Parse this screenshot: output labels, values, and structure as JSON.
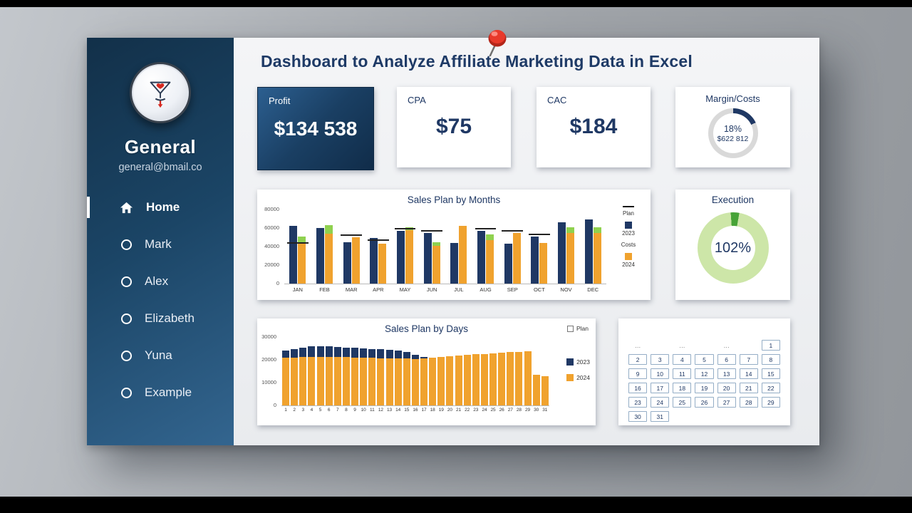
{
  "page": {
    "title": "Dashboard to Analyze Affiliate Marketing Data in Excel"
  },
  "sidebar": {
    "name": "General",
    "email": "general@bmail.co",
    "items": [
      {
        "label": "Home",
        "active": true
      },
      {
        "label": "Mark",
        "active": false
      },
      {
        "label": "Alex",
        "active": false
      },
      {
        "label": "Elizabeth",
        "active": false
      },
      {
        "label": "Yuna",
        "active": false
      },
      {
        "label": "Example",
        "active": false
      }
    ]
  },
  "icons": {
    "logo": "martini-glass-with-heart-and-down-arrow",
    "home": "house",
    "bullet": "circle-outline",
    "pin": "red-pushpin"
  },
  "kpis": {
    "profit": {
      "label": "Profit",
      "value": "$134 538"
    },
    "cpa": {
      "label": "CPA",
      "value": "$75"
    },
    "cac": {
      "label": "CAC",
      "value": "$184"
    },
    "margin": {
      "label": "Margin/Costs",
      "percent": "18%",
      "amount": "$622 812",
      "percent_value": 18
    }
  },
  "execution": {
    "title": "Execution",
    "value": "102%",
    "percent_value": 102
  },
  "colors": {
    "navy": "#1f3864",
    "orange": "#f0a22e",
    "green": "#8fd14f",
    "donut_light_green": "#cde6a8",
    "donut_dark_green": "#47a338",
    "ring_gray": "#d9d9d9"
  },
  "chart_data": [
    {
      "type": "bar",
      "title": "Sales Plan by Months",
      "categories": [
        "JAN",
        "FEB",
        "MAR",
        "APR",
        "MAY",
        "JUN",
        "JUL",
        "AUG",
        "SEP",
        "OCT",
        "NOV",
        "DEC"
      ],
      "ylim": [
        0,
        80000
      ],
      "yticks": [
        0,
        20000,
        40000,
        60000,
        80000
      ],
      "series": [
        {
          "name": "2023",
          "color": "#1f3864",
          "values": [
            62000,
            60000,
            45000,
            49000,
            57000,
            55000,
            44000,
            57000,
            43000,
            51000,
            66000,
            69000
          ]
        },
        {
          "name": "2024",
          "color": "#f0a22e",
          "values": [
            51000,
            63000,
            50000,
            43000,
            61000,
            45000,
            62000,
            53000,
            55000,
            44000,
            61000,
            61000
          ]
        }
      ],
      "green_from": [
        44000,
        54000,
        null,
        null,
        58000,
        41000,
        null,
        47000,
        null,
        null,
        55000,
        55000
      ],
      "plan_marks": [
        44000,
        null,
        52000,
        47000,
        59000,
        57000,
        null,
        59000,
        57000,
        53000,
        null,
        null
      ],
      "legend": [
        {
          "label": "Plan",
          "symbol": "dash"
        },
        {
          "label": "2023",
          "symbol": "square",
          "color": "#1f3864"
        },
        {
          "label": "Costs",
          "symbol": "none"
        },
        {
          "label": "2024",
          "symbol": "square",
          "color": "#f0a22e"
        }
      ]
    },
    {
      "type": "bar",
      "title": "Sales Plan by Days",
      "categories": [
        "1",
        "2",
        "3",
        "4",
        "5",
        "6",
        "7",
        "8",
        "9",
        "10",
        "11",
        "12",
        "13",
        "14",
        "15",
        "16",
        "17",
        "18",
        "19",
        "20",
        "21",
        "22",
        "23",
        "24",
        "25",
        "26",
        "27",
        "28",
        "29",
        "30",
        "31"
      ],
      "ylim": [
        0,
        30000
      ],
      "yticks": [
        0,
        10000,
        20000,
        30000
      ],
      "legend_top": "Plan",
      "series": [
        {
          "name": "2023",
          "color": "#1f3864",
          "values": [
            24200,
            24800,
            25300,
            25800,
            26000,
            25900,
            25600,
            25400,
            25200,
            25000,
            24800,
            24600,
            24400,
            24100,
            23300,
            22200,
            21200,
            20600,
            20600,
            20800,
            21000,
            21300,
            21500,
            21800,
            22000,
            22300,
            22600,
            22800,
            23000,
            12200,
            11900
          ]
        },
        {
          "name": "2024",
          "color": "#f0a22e",
          "values": [
            20900,
            21000,
            21100,
            21200,
            21300,
            21300,
            21200,
            21100,
            21000,
            20900,
            20800,
            20700,
            20700,
            20600,
            20500,
            20400,
            20600,
            21000,
            21300,
            21600,
            21900,
            22100,
            22400,
            22600,
            22900,
            23100,
            23300,
            23500,
            23600,
            13400,
            12900
          ]
        }
      ],
      "legend": [
        {
          "label": "2023",
          "color": "#1f3864"
        },
        {
          "label": "2024",
          "color": "#f0a22e"
        }
      ]
    }
  ],
  "calendar": {
    "rows": [
      [
        "…",
        "",
        "…",
        "",
        "…",
        "",
        "1"
      ],
      [
        "2",
        "3",
        "4",
        "5",
        "6",
        "7",
        "8"
      ],
      [
        "9",
        "10",
        "11",
        "12",
        "13",
        "14",
        "15"
      ],
      [
        "16",
        "17",
        "18",
        "19",
        "20",
        "21",
        "22"
      ],
      [
        "23",
        "24",
        "25",
        "26",
        "27",
        "28",
        "29"
      ],
      [
        "30",
        "31",
        "",
        "",
        "",
        "",
        ""
      ]
    ]
  }
}
